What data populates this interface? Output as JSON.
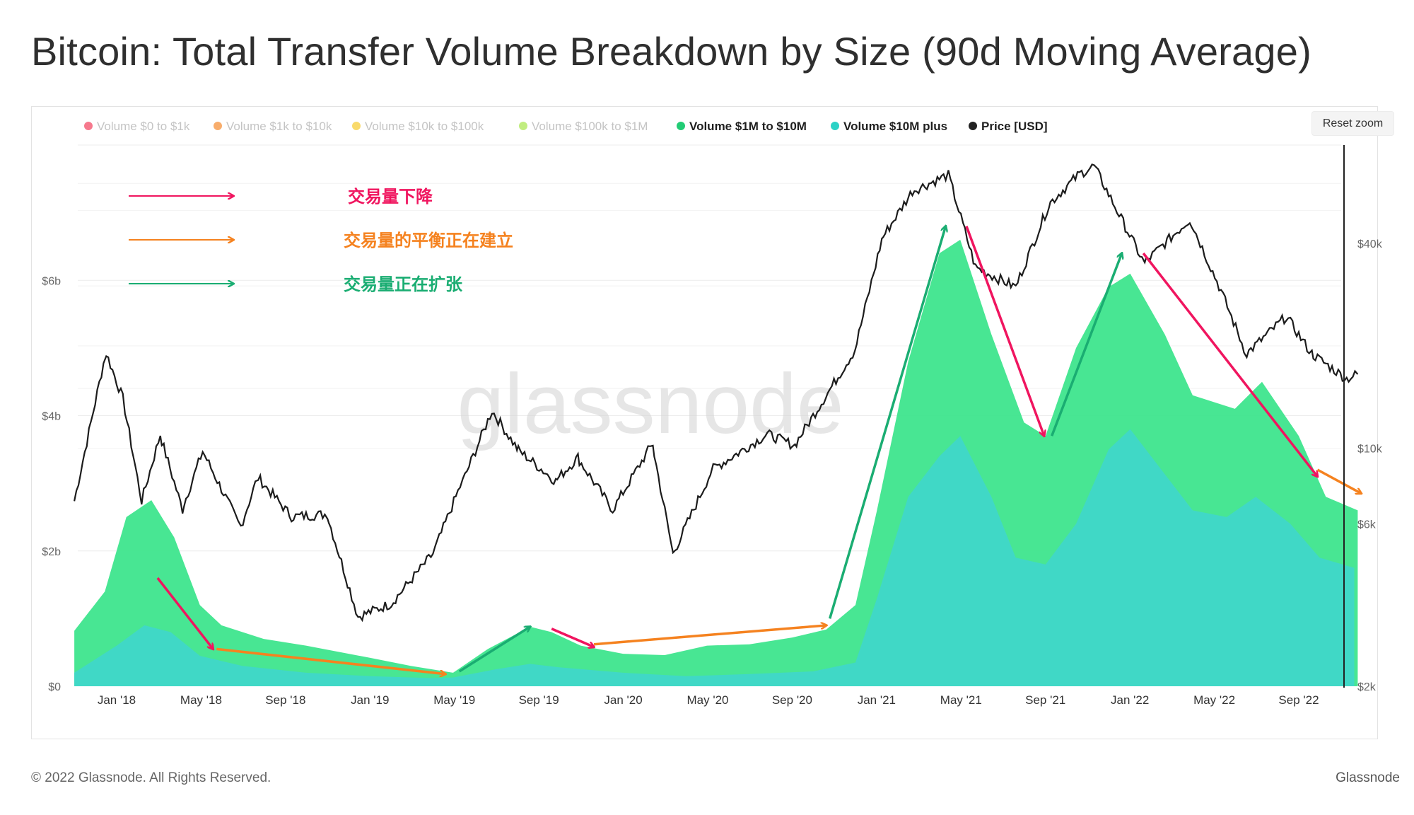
{
  "title": "Bitcoin: Total Transfer Volume Breakdown by Size (90d Moving Average)",
  "reset_zoom_label": "Reset zoom",
  "footer": {
    "copyright": "© 2022 Glassnode. All Rights Reserved.",
    "brand": "Glassnode"
  },
  "watermark": "glassnode",
  "annotations": [
    {
      "text": "交易量下降",
      "color": "#f0155f"
    },
    {
      "text": "交易量的平衡正在建立",
      "color": "#f5821f"
    },
    {
      "text": "交易量正在扩张",
      "color": "#1aad72"
    }
  ],
  "colors": {
    "pink": "#f0155f",
    "orange": "#f5821f",
    "green": "#1aad72",
    "area1m": "#3ee58d",
    "area10m": "#40d8c6",
    "price": "#1c1c1c"
  },
  "chart_data": {
    "type": "area",
    "legend_placement": "top-left",
    "legend": [
      {
        "name": "Volume $0 to $1k",
        "color": "#f2405c",
        "enabled": false
      },
      {
        "name": "Volume $1k to $10k",
        "color": "#f58a2e",
        "enabled": false
      },
      {
        "name": "Volume $10k to $100k",
        "color": "#f6cb2c",
        "enabled": false
      },
      {
        "name": "Volume $100k to $1M",
        "color": "#a7e64a",
        "enabled": false
      },
      {
        "name": "Volume $1M to $10M",
        "color": "#22cc75",
        "enabled": true
      },
      {
        "name": "Volume $10M plus",
        "color": "#2cd2c6",
        "enabled": true
      },
      {
        "name": "Price [USD]",
        "color": "#222222",
        "enabled": true
      }
    ],
    "x_ticks": [
      "Jan '18",
      "May '18",
      "Sep '18",
      "Jan '19",
      "May '19",
      "Sep '19",
      "Jan '20",
      "May '20",
      "Sep '20",
      "Jan '21",
      "May '21",
      "Sep '21",
      "Jan '22",
      "May '22",
      "Sep '22"
    ],
    "y_left_ticks": [
      "$0",
      "$2b",
      "$4b",
      "$6b"
    ],
    "y_left_range": [
      0,
      8000000000
    ],
    "y_right_ticks": [
      "$2k",
      "$6k",
      "$10k",
      "$40k"
    ],
    "y_right_scale": "log",
    "grid": true,
    "series": [
      {
        "name": "Volume $10M plus",
        "type": "area",
        "unit": "USD billions",
        "points": [
          [
            "2017-11-01",
            0.2
          ],
          [
            "2018-01-01",
            0.6
          ],
          [
            "2018-02-10",
            0.9
          ],
          [
            "2018-03-20",
            0.8
          ],
          [
            "2018-05-01",
            0.45
          ],
          [
            "2018-07-01",
            0.3
          ],
          [
            "2018-10-01",
            0.2
          ],
          [
            "2019-01-01",
            0.15
          ],
          [
            "2019-04-01",
            0.12
          ],
          [
            "2019-05-01",
            0.13
          ],
          [
            "2019-07-01",
            0.25
          ],
          [
            "2019-08-20",
            0.33
          ],
          [
            "2019-10-01",
            0.28
          ],
          [
            "2020-01-01",
            0.2
          ],
          [
            "2020-04-01",
            0.15
          ],
          [
            "2020-07-01",
            0.18
          ],
          [
            "2020-10-01",
            0.22
          ],
          [
            "2020-12-01",
            0.35
          ],
          [
            "2021-01-01",
            1.3
          ],
          [
            "2021-02-15",
            2.8
          ],
          [
            "2021-04-01",
            3.4
          ],
          [
            "2021-05-01",
            3.7
          ],
          [
            "2021-06-15",
            2.8
          ],
          [
            "2021-07-20",
            1.9
          ],
          [
            "2021-09-01",
            1.8
          ],
          [
            "2021-10-15",
            2.4
          ],
          [
            "2021-12-01",
            3.5
          ],
          [
            "2022-01-01",
            3.8
          ],
          [
            "2022-02-15",
            3.2
          ],
          [
            "2022-04-01",
            2.6
          ],
          [
            "2022-05-20",
            2.5
          ],
          [
            "2022-07-01",
            2.8
          ],
          [
            "2022-08-20",
            2.4
          ],
          [
            "2022-10-01",
            1.9
          ],
          [
            "2022-11-20",
            1.75
          ]
        ]
      },
      {
        "name": "Volume $1M to $10M",
        "type": "area",
        "unit": "USD billions",
        "points": [
          [
            "2017-11-01",
            0.82
          ],
          [
            "2017-12-15",
            1.4
          ],
          [
            "2018-01-15",
            2.5
          ],
          [
            "2018-02-20",
            2.75
          ],
          [
            "2018-03-25",
            2.2
          ],
          [
            "2018-05-01",
            1.2
          ],
          [
            "2018-06-01",
            0.9
          ],
          [
            "2018-08-01",
            0.7
          ],
          [
            "2018-10-01",
            0.6
          ],
          [
            "2019-01-01",
            0.42
          ],
          [
            "2019-03-01",
            0.3
          ],
          [
            "2019-05-01",
            0.2
          ],
          [
            "2019-06-20",
            0.55
          ],
          [
            "2019-08-20",
            0.88
          ],
          [
            "2019-09-20",
            0.8
          ],
          [
            "2019-11-01",
            0.6
          ],
          [
            "2020-01-01",
            0.48
          ],
          [
            "2020-03-01",
            0.46
          ],
          [
            "2020-05-01",
            0.6
          ],
          [
            "2020-07-01",
            0.62
          ],
          [
            "2020-09-01",
            0.72
          ],
          [
            "2020-10-20",
            0.84
          ],
          [
            "2020-12-01",
            1.2
          ],
          [
            "2021-01-01",
            2.6
          ],
          [
            "2021-02-15",
            4.8
          ],
          [
            "2021-04-01",
            6.4
          ],
          [
            "2021-05-01",
            6.6
          ],
          [
            "2021-06-15",
            5.2
          ],
          [
            "2021-08-01",
            3.9
          ],
          [
            "2021-09-01",
            3.7
          ],
          [
            "2021-10-15",
            5.0
          ],
          [
            "2021-12-01",
            5.9
          ],
          [
            "2022-01-01",
            6.1
          ],
          [
            "2022-02-20",
            5.2
          ],
          [
            "2022-04-01",
            4.3
          ],
          [
            "2022-06-01",
            4.1
          ],
          [
            "2022-07-10",
            4.5
          ],
          [
            "2022-09-01",
            3.7
          ],
          [
            "2022-10-10",
            2.8
          ],
          [
            "2022-11-25",
            2.6
          ]
        ]
      },
      {
        "name": "Price [USD]",
        "type": "line",
        "axis": "right",
        "points": [
          [
            "2017-11-01",
            7000
          ],
          [
            "2017-12-17",
            19000
          ],
          [
            "2018-01-10",
            14000
          ],
          [
            "2018-02-06",
            7000
          ],
          [
            "2018-03-05",
            11000
          ],
          [
            "2018-04-06",
            6600
          ],
          [
            "2018-05-05",
            9800
          ],
          [
            "2018-06-29",
            5900
          ],
          [
            "2018-07-24",
            8200
          ],
          [
            "2018-09-10",
            6300
          ],
          [
            "2018-11-01",
            6400
          ],
          [
            "2018-12-15",
            3200
          ],
          [
            "2019-02-01",
            3500
          ],
          [
            "2019-04-02",
            4900
          ],
          [
            "2019-05-15",
            8000
          ],
          [
            "2019-06-26",
            12900
          ],
          [
            "2019-08-01",
            10000
          ],
          [
            "2019-09-26",
            8000
          ],
          [
            "2019-10-28",
            9400
          ],
          [
            "2019-12-17",
            6600
          ],
          [
            "2020-02-13",
            10300
          ],
          [
            "2020-03-13",
            4900
          ],
          [
            "2020-05-10",
            8700
          ],
          [
            "2020-07-27",
            11000
          ],
          [
            "2020-09-05",
            10200
          ],
          [
            "2020-11-30",
            19400
          ],
          [
            "2021-01-08",
            41000
          ],
          [
            "2021-02-21",
            57000
          ],
          [
            "2021-04-14",
            63500
          ],
          [
            "2021-05-23",
            34000
          ],
          [
            "2021-07-20",
            29800
          ],
          [
            "2021-09-06",
            52000
          ],
          [
            "2021-10-20",
            64000
          ],
          [
            "2021-11-10",
            67500
          ],
          [
            "2022-01-22",
            35000
          ],
          [
            "2022-03-28",
            47000
          ],
          [
            "2022-05-12",
            29000
          ],
          [
            "2022-06-18",
            19000
          ],
          [
            "2022-08-14",
            24400
          ],
          [
            "2022-09-20",
            19000
          ],
          [
            "2022-11-09",
            16000
          ],
          [
            "2022-11-25",
            16500
          ]
        ]
      }
    ]
  }
}
